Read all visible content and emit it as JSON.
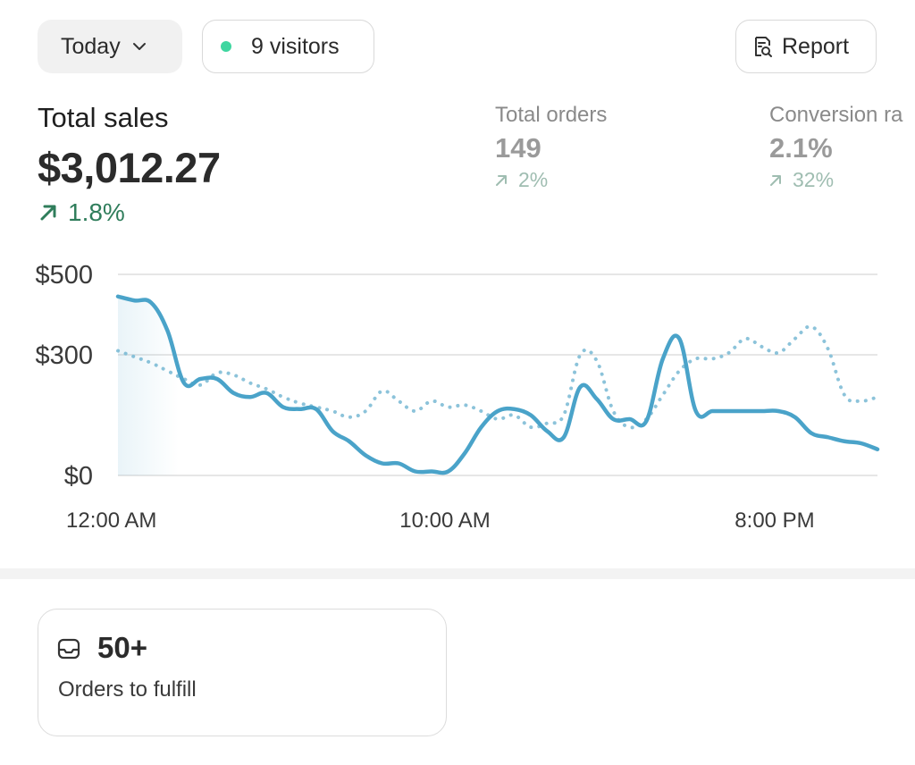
{
  "header": {
    "date_range": "Today",
    "visitors": "9 visitors",
    "report": "Report"
  },
  "metrics": {
    "total_sales": {
      "label": "Total sales",
      "value": "$3,012.27",
      "change": "1.8%"
    },
    "total_orders": {
      "label": "Total orders",
      "value": "149",
      "change": "2%"
    },
    "conversion": {
      "label": "Conversion ra",
      "value": "2.1%",
      "change": "32%"
    }
  },
  "colors": {
    "accent_line": "#4aa3c9",
    "positive": "#2f7d5b",
    "live_dot": "#3fd6a0"
  },
  "chart_data": {
    "type": "line",
    "x_labels": [
      "12:00 AM",
      "10:00 AM",
      "8:00 PM"
    ],
    "y_tick_labels": [
      "$500",
      "$300",
      "$0"
    ],
    "y_ticks": [
      500,
      300,
      0
    ],
    "ylim": [
      0,
      560
    ],
    "x": [
      0,
      0.5,
      1,
      1.5,
      2,
      2.5,
      3,
      3.5,
      4,
      4.5,
      5,
      5.5,
      6,
      6.5,
      7,
      7.5,
      8,
      8.5,
      9,
      9.5,
      10,
      10.5,
      11,
      11.5,
      12,
      12.5,
      13,
      13.5,
      14,
      14.5,
      15,
      15.5,
      16,
      16.5,
      17,
      17.5,
      18,
      18.5,
      19,
      19.5,
      20,
      20.5,
      21,
      21.5,
      22,
      22.5,
      23
    ],
    "series": [
      {
        "values": [
          445,
          435,
          430,
          360,
          230,
          240,
          240,
          205,
          195,
          205,
          170,
          165,
          165,
          110,
          85,
          50,
          30,
          30,
          10,
          10,
          10,
          55,
          120,
          160,
          165,
          150,
          110,
          95,
          220,
          190,
          140,
          140,
          135,
          290,
          340,
          160,
          160,
          160,
          160,
          160,
          160,
          145,
          105,
          95,
          85,
          80,
          65
        ],
        "style": "solid",
        "color": "#4aa3c9"
      },
      {
        "values": [
          310,
          295,
          280,
          260,
          240,
          225,
          255,
          250,
          230,
          215,
          195,
          180,
          170,
          160,
          145,
          160,
          210,
          185,
          160,
          185,
          170,
          175,
          160,
          140,
          150,
          120,
          130,
          150,
          300,
          285,
          160,
          120,
          140,
          200,
          260,
          290,
          290,
          305,
          340,
          320,
          305,
          340,
          370,
          315,
          200,
          185,
          195
        ],
        "style": "dotted",
        "color": "#8cc3da"
      }
    ]
  },
  "fulfill": {
    "count": "50+",
    "label": "Orders to fulfill"
  }
}
